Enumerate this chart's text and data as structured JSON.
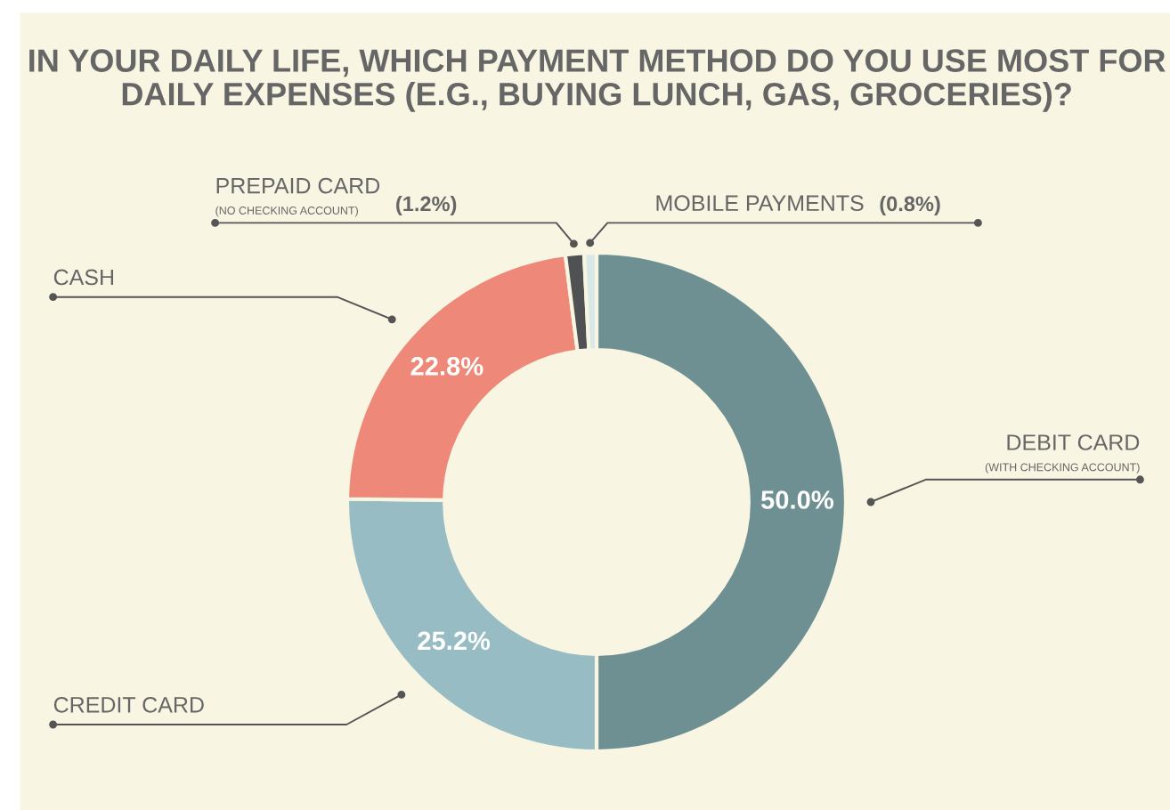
{
  "chart_data": {
    "type": "donut",
    "title": "IN YOUR DAILY LIFE, WHICH PAYMENT METHOD DO YOU USE MOST FOR DAILY EXPENSES (E.G., BUYING LUNCH, GAS, GROCERIES)?",
    "categories": [
      "DEBIT CARD (WITH CHECKING ACCOUNT)",
      "CREDIT CARD",
      "CASH",
      "PREPAID CARD (NO CHECKING ACCOUNT)",
      "MOBILE PAYMENTS"
    ],
    "values": [
      50.0,
      25.2,
      22.8,
      1.2,
      0.8
    ],
    "colors": [
      "#6f9092",
      "#97bcc3",
      "#ee8878",
      "#4f5152",
      "#d8e8e6"
    ],
    "value_labels": [
      "50.0%",
      "25.2%",
      "22.8%",
      "(1.2%)",
      "(0.8%)"
    ]
  }
}
